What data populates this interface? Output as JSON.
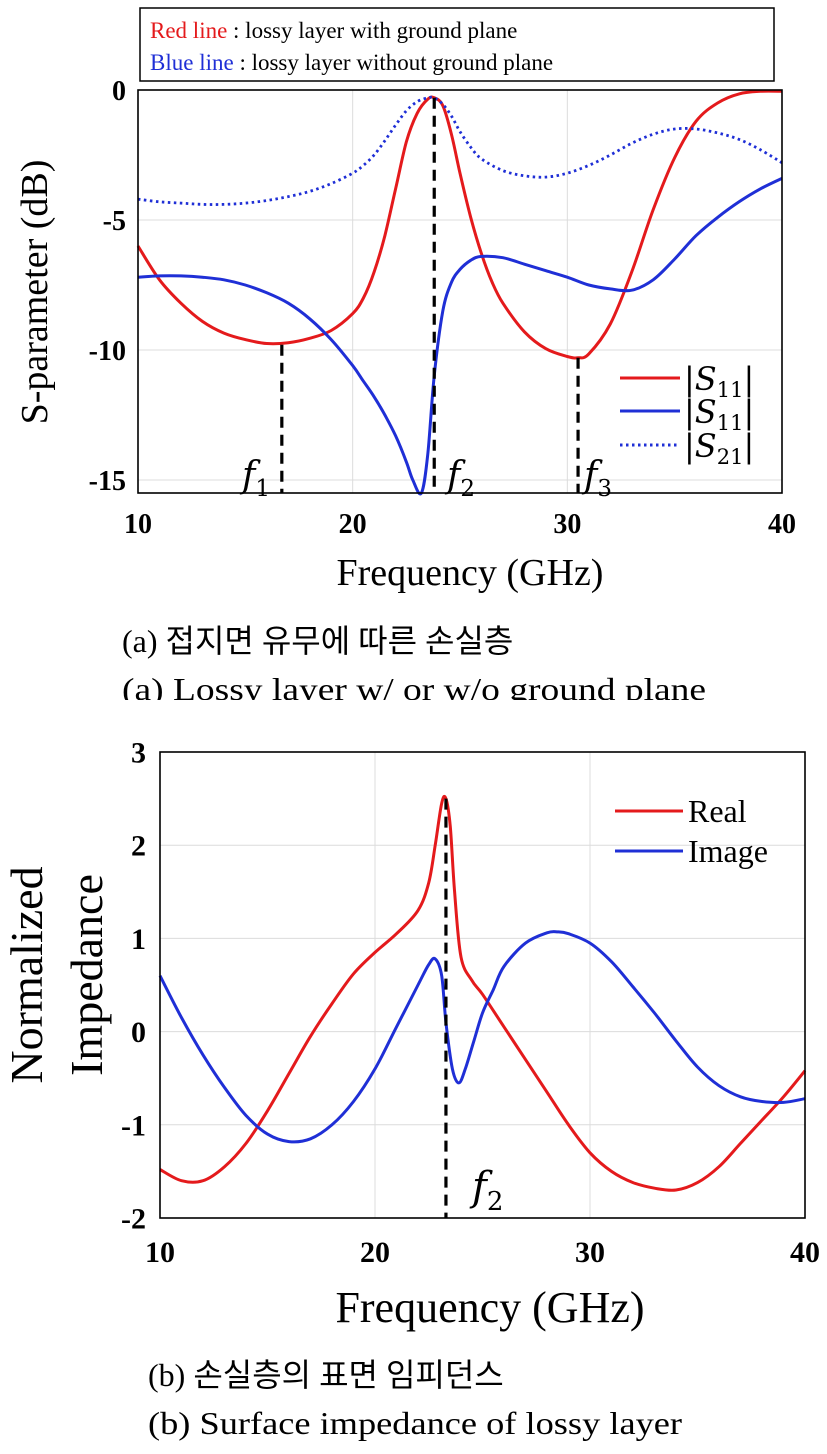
{
  "chart_data": [
    {
      "type": "line",
      "xlabel": "Frequency (GHz)",
      "ylabel": "S-parameter (dB)",
      "xlim": [
        10,
        40
      ],
      "ylim": [
        -15.5,
        0
      ],
      "xticks": [
        "10",
        "20",
        "30",
        "40"
      ],
      "yticks": [
        "0",
        "-5",
        "-10",
        "-15"
      ],
      "grid": true,
      "note": {
        "red_label": "Red line",
        "red_text": " : lossy layer with ground plane",
        "blue_label": "Blue line",
        "blue_text": " : lossy layer without ground plane"
      },
      "legend": {
        "position": "bottom-right",
        "entries": [
          {
            "label": "|S11|",
            "base": "S",
            "sub": "11",
            "color": "#e41a1c",
            "style": "solid"
          },
          {
            "label": "|S11|",
            "base": "S",
            "sub": "11",
            "color": "#1f2fd6",
            "style": "solid"
          },
          {
            "label": "|S21|",
            "base": "S",
            "sub": "21",
            "color": "#1f2fd6",
            "style": "dotted"
          }
        ]
      },
      "markers": [
        {
          "name": "f1",
          "base": "f",
          "sub": "1",
          "x": 16.7,
          "y_top": -9.8
        },
        {
          "name": "f2",
          "base": "f",
          "sub": "2",
          "x": 23.8,
          "y_top": -0.3
        },
        {
          "name": "f3",
          "base": "f",
          "sub": "3",
          "x": 30.5,
          "y_top": -10.3
        }
      ],
      "series": [
        {
          "name": "|S11| with ground plane",
          "color": "#e41a1c",
          "style": "solid",
          "x": [
            10,
            11,
            12,
            13,
            14,
            15,
            16,
            17,
            18,
            19,
            20,
            20.5,
            21,
            21.5,
            22,
            22.5,
            23,
            23.5,
            23.8,
            24.2,
            24.6,
            25,
            25.5,
            26,
            26.5,
            27,
            28,
            29,
            30,
            30.5,
            31,
            32,
            33,
            34,
            35,
            36,
            37,
            38,
            39,
            40
          ],
          "y": [
            -6.0,
            -7.3,
            -8.2,
            -8.9,
            -9.35,
            -9.6,
            -9.75,
            -9.72,
            -9.55,
            -9.25,
            -8.6,
            -8.0,
            -7.0,
            -5.6,
            -3.8,
            -2.0,
            -0.9,
            -0.35,
            -0.3,
            -0.6,
            -1.7,
            -3.2,
            -4.9,
            -6.3,
            -7.4,
            -8.2,
            -9.3,
            -9.95,
            -10.25,
            -10.3,
            -10.15,
            -9.0,
            -7.0,
            -4.6,
            -2.6,
            -1.2,
            -0.5,
            -0.15,
            -0.05,
            -0.05
          ]
        },
        {
          "name": "|S11| without ground plane",
          "color": "#1f2fd6",
          "style": "solid",
          "x": [
            10,
            11,
            12,
            13,
            14,
            15,
            16,
            17,
            18,
            19,
            20,
            20.5,
            21,
            21.5,
            22,
            22.5,
            22.8,
            23.2,
            23.5,
            23.8,
            24.2,
            24.6,
            25,
            25.5,
            26,
            27,
            28,
            29,
            30,
            31,
            32,
            33,
            34,
            35,
            36,
            37,
            38,
            39,
            40
          ],
          "y": [
            -7.2,
            -7.15,
            -7.15,
            -7.2,
            -7.3,
            -7.5,
            -7.8,
            -8.2,
            -8.8,
            -9.6,
            -10.6,
            -11.2,
            -11.8,
            -12.5,
            -13.3,
            -14.3,
            -15.0,
            -15.5,
            -14.0,
            -11.0,
            -8.5,
            -7.4,
            -6.9,
            -6.55,
            -6.4,
            -6.45,
            -6.7,
            -6.95,
            -7.2,
            -7.5,
            -7.65,
            -7.7,
            -7.3,
            -6.5,
            -5.6,
            -4.9,
            -4.3,
            -3.8,
            -3.4
          ]
        },
        {
          "name": "|S21| without ground plane",
          "color": "#1f2fd6",
          "style": "dotted",
          "x": [
            10,
            11,
            12,
            13,
            14,
            15,
            16,
            17,
            18,
            19,
            20,
            20.5,
            21,
            21.5,
            22,
            22.5,
            23,
            23.5,
            23.8,
            24.2,
            24.6,
            25,
            25.5,
            26,
            27,
            28,
            29,
            30,
            31,
            32,
            33,
            34,
            35,
            36,
            37,
            38,
            39,
            40
          ],
          "y": [
            -4.2,
            -4.3,
            -4.35,
            -4.4,
            -4.4,
            -4.35,
            -4.25,
            -4.1,
            -3.9,
            -3.6,
            -3.2,
            -2.9,
            -2.5,
            -1.95,
            -1.35,
            -0.8,
            -0.45,
            -0.3,
            -0.3,
            -0.55,
            -1.0,
            -1.6,
            -2.2,
            -2.65,
            -3.1,
            -3.3,
            -3.35,
            -3.2,
            -2.9,
            -2.5,
            -2.05,
            -1.7,
            -1.5,
            -1.5,
            -1.65,
            -1.9,
            -2.3,
            -2.8
          ]
        }
      ],
      "caption_ko": "(a) 접지면 유무에 따른 손실층",
      "caption_en": "(a) Lossy layer w/ or w/o ground plane"
    },
    {
      "type": "line",
      "xlabel": "Frequency (GHz)",
      "ylabel_line1": "Normalized",
      "ylabel_line2": "Impedance",
      "xlim": [
        10,
        40
      ],
      "ylim": [
        -2,
        3
      ],
      "xticks": [
        "10",
        "20",
        "30",
        "40"
      ],
      "yticks": [
        "3",
        "2",
        "1",
        "0",
        "-1",
        "-2"
      ],
      "grid": true,
      "legend": {
        "position": "top-right",
        "entries": [
          {
            "label": "Real",
            "color": "#e41a1c",
            "style": "solid"
          },
          {
            "label": "Image",
            "color": "#1f2fd6",
            "style": "solid"
          }
        ]
      },
      "markers": [
        {
          "name": "f2",
          "base": "f",
          "sub": "2",
          "x": 23.3,
          "y_top": 2.5
        }
      ],
      "series": [
        {
          "name": "Real",
          "color": "#e41a1c",
          "style": "solid",
          "x": [
            10,
            11,
            12,
            13,
            14,
            15,
            16,
            17,
            18,
            19,
            20,
            21,
            22,
            22.5,
            22.8,
            23.1,
            23.3,
            23.5,
            23.7,
            24,
            24.5,
            25,
            26,
            27,
            28,
            29,
            30,
            31,
            32,
            33,
            34,
            35,
            36,
            37,
            38,
            39,
            40
          ],
          "y": [
            -1.48,
            -1.6,
            -1.6,
            -1.45,
            -1.2,
            -0.85,
            -0.45,
            -0.05,
            0.3,
            0.62,
            0.85,
            1.05,
            1.3,
            1.6,
            2.0,
            2.45,
            2.5,
            2.2,
            1.5,
            0.8,
            0.55,
            0.4,
            0.05,
            -0.3,
            -0.65,
            -1.0,
            -1.3,
            -1.5,
            -1.62,
            -1.68,
            -1.7,
            -1.62,
            -1.45,
            -1.2,
            -0.95,
            -0.7,
            -0.42
          ]
        },
        {
          "name": "Image",
          "color": "#1f2fd6",
          "style": "solid",
          "x": [
            10,
            11,
            12,
            13,
            14,
            15,
            16,
            17,
            18,
            19,
            20,
            21,
            22,
            22.5,
            22.8,
            23.1,
            23.3,
            23.6,
            23.9,
            24.2,
            24.6,
            25,
            25.5,
            26,
            27,
            28,
            28.5,
            29,
            30,
            31,
            32,
            33,
            34,
            35,
            36,
            37,
            38,
            39,
            40
          ],
          "y": [
            0.6,
            0.15,
            -0.25,
            -0.6,
            -0.9,
            -1.1,
            -1.18,
            -1.15,
            -1.0,
            -0.75,
            -0.4,
            0.05,
            0.5,
            0.72,
            0.78,
            0.6,
            0.1,
            -0.4,
            -0.55,
            -0.4,
            -0.1,
            0.2,
            0.45,
            0.7,
            0.95,
            1.06,
            1.07,
            1.05,
            0.95,
            0.75,
            0.48,
            0.2,
            -0.1,
            -0.38,
            -0.58,
            -0.7,
            -0.75,
            -0.76,
            -0.72
          ]
        }
      ],
      "caption_ko": "(b) 손실층의 표면 임피던스",
      "caption_en": "(b) Surface impedance of lossy layer"
    }
  ]
}
